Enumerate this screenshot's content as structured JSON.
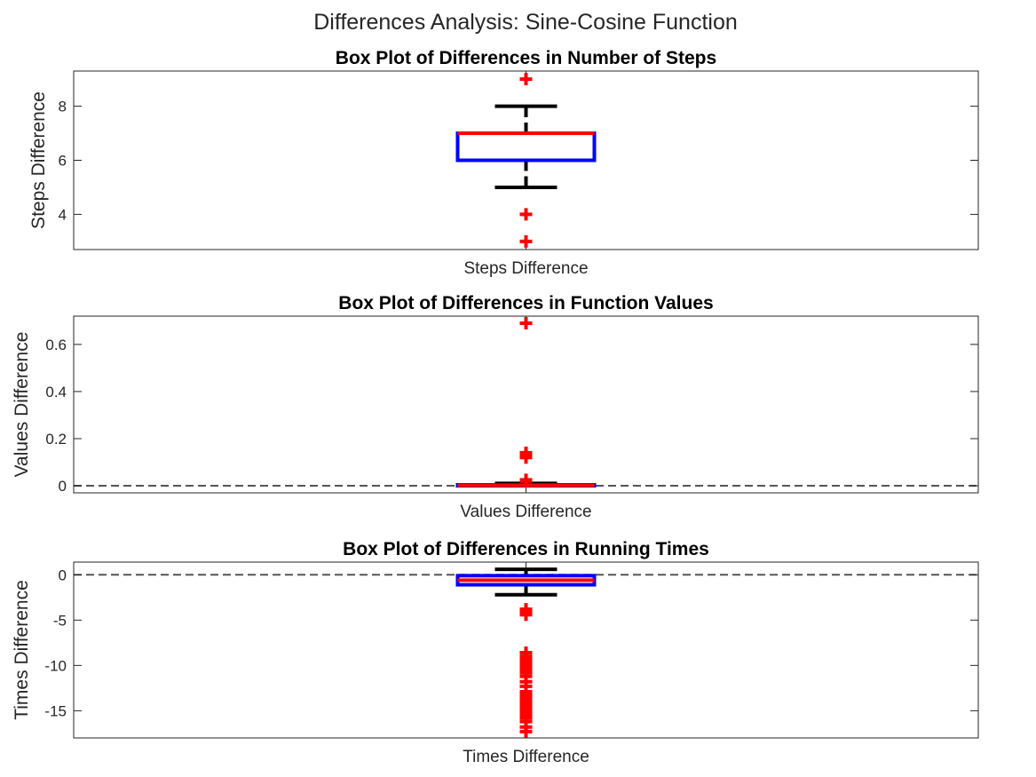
{
  "figure_title": "Differences Analysis: Sine-Cosine Function",
  "chart_data": [
    {
      "type": "box",
      "title": "Box Plot of Differences in Number of Steps",
      "ylabel": "Steps Difference",
      "categories": [
        "Steps Difference"
      ],
      "ylim": [
        2.7,
        9.3
      ],
      "yticks": [
        4,
        6,
        8
      ],
      "ytick_labels": [
        "4",
        "6",
        "8"
      ],
      "zero_line": false,
      "box": {
        "q1": 6,
        "median": 7,
        "q3": 7,
        "whisker_low": 5,
        "whisker_high": 8
      },
      "outliers": [
        9,
        4,
        3
      ],
      "colors": {
        "box": "#0000ff",
        "median": "#ff0000",
        "whisker": "#000000",
        "outlier": "#ff0000"
      }
    },
    {
      "type": "box",
      "title": "Box Plot of Differences in Function Values",
      "ylabel": "Values Difference",
      "categories": [
        "Values Difference"
      ],
      "ylim": [
        -0.03,
        0.72
      ],
      "yticks": [
        0,
        0.2,
        0.4,
        0.6
      ],
      "ytick_labels": [
        "0",
        "0.2",
        "0.4",
        "0.6"
      ],
      "zero_line": true,
      "box": {
        "q1": 0.0,
        "median": 0.002,
        "q3": 0.004,
        "whisker_low": 0.0,
        "whisker_high": 0.01
      },
      "outliers": [
        0.69,
        0.14,
        0.13,
        0.125,
        0.12,
        0.025,
        0.02
      ],
      "colors": {
        "box": "#0000ff",
        "median": "#ff0000",
        "whisker": "#000000",
        "outlier": "#ff0000"
      }
    },
    {
      "type": "box",
      "title": "Box Plot of Differences in Running Times",
      "ylabel": "Times Difference",
      "categories": [
        "Times Difference"
      ],
      "ylim": [
        -18,
        1.4
      ],
      "yticks": [
        -15,
        -10,
        -5,
        0
      ],
      "ytick_labels": [
        "-15",
        "-10",
        "-5",
        "0"
      ],
      "zero_line": true,
      "box": {
        "q1": -1.1,
        "median": -0.6,
        "q3": -0.1,
        "whisker_low": -2.2,
        "whisker_high": 0.6
      },
      "outliers": [
        -3.8,
        -4.1,
        -4.4,
        -8.6,
        -9.0,
        -9.3,
        -9.6,
        -9.9,
        -10.2,
        -10.5,
        -10.8,
        -11.2,
        -11.8,
        -12.3,
        -12.9,
        -13.3,
        -13.6,
        -13.9,
        -14.2,
        -14.5,
        -14.8,
        -15.1,
        -15.4,
        -15.8,
        -16.2,
        -16.8,
        -17.3
      ],
      "colors": {
        "box": "#0000ff",
        "median": "#ff0000",
        "whisker": "#000000",
        "outlier": "#ff0000"
      }
    }
  ]
}
